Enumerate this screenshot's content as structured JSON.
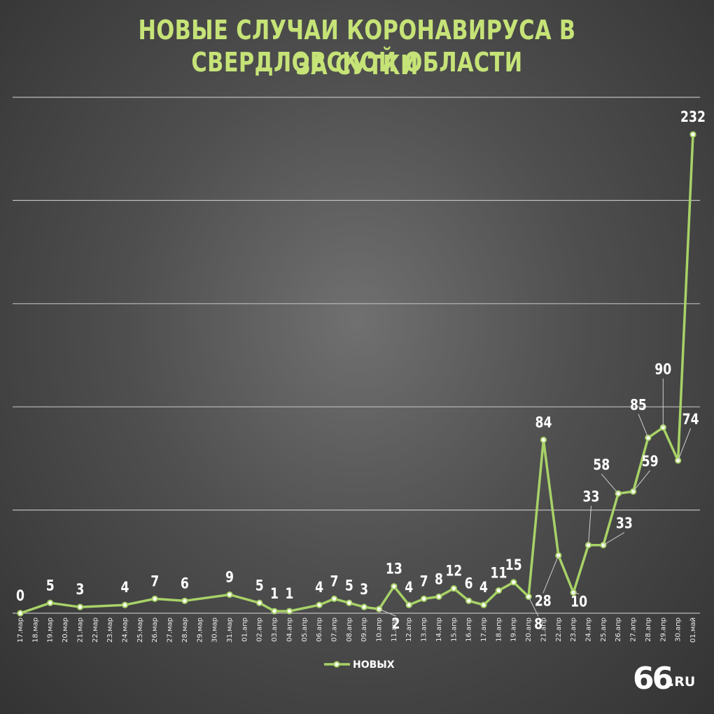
{
  "title": {
    "line1": "НОВЫЕ СЛУЧАИ КОРОНАВИРУСА В СВЕРДЛОВСКОЙ ОБЛАСТИ",
    "line2": "ЗА СУТКИ"
  },
  "logo": {
    "number": "66",
    "suffix": ".RU"
  },
  "colors": {
    "line": "#a8d267",
    "marker": "#a8d267",
    "marker_fill": "#ffffff",
    "grid": "#bdbdbd",
    "title": "#c6e377",
    "label": "#ffffff"
  },
  "chart_data": {
    "type": "line",
    "title": "НОВЫЕ СЛУЧАИ КОРОНАВИРУСА В СВЕРДЛОВСКОЙ ОБЛАСТИ ЗА СУТКИ",
    "xlabel": "",
    "ylabel": "",
    "categories": [
      "17.мар",
      "18.мар",
      "19.мар",
      "20.мар",
      "21.мар",
      "22.мар",
      "23.мар",
      "24.мар",
      "25.мар",
      "26.мар",
      "27.мар",
      "28.мар",
      "29.мар",
      "30.мар",
      "31.мар",
      "01.апр",
      "02.апр",
      "03.апр",
      "04.апр",
      "05.апр",
      "06.апр",
      "07.апр",
      "08.апр",
      "09.апр",
      "10.апр",
      "11.апр",
      "12.апр",
      "13.апр",
      "14.апр",
      "15.апр",
      "16.апр",
      "17.апр",
      "18.апр",
      "19.апр",
      "20.апр",
      "21.апр",
      "22.апр",
      "23.апр",
      "24.апр",
      "25.апр",
      "26.апр",
      "27.апр",
      "28.апр",
      "29.апр",
      "30.апр",
      "01.май"
    ],
    "series": [
      {
        "name": "НОВЫХ",
        "values": [
          0,
          null,
          5,
          null,
          3,
          null,
          null,
          4,
          null,
          7,
          null,
          6,
          null,
          null,
          9,
          null,
          5,
          1,
          1,
          null,
          4,
          7,
          5,
          3,
          2,
          13,
          4,
          7,
          8,
          12,
          6,
          4,
          11,
          15,
          8,
          84,
          28,
          10,
          33,
          33,
          58,
          59,
          85,
          90,
          74,
          232
        ]
      }
    ],
    "ylim": [
      0,
      250
    ],
    "y_gridlines": [
      0,
      50,
      100,
      150,
      200,
      250
    ],
    "grid": true,
    "legend": {
      "position": "bottom-center",
      "entries": [
        "НОВЫХ"
      ]
    },
    "data_labels": true
  }
}
